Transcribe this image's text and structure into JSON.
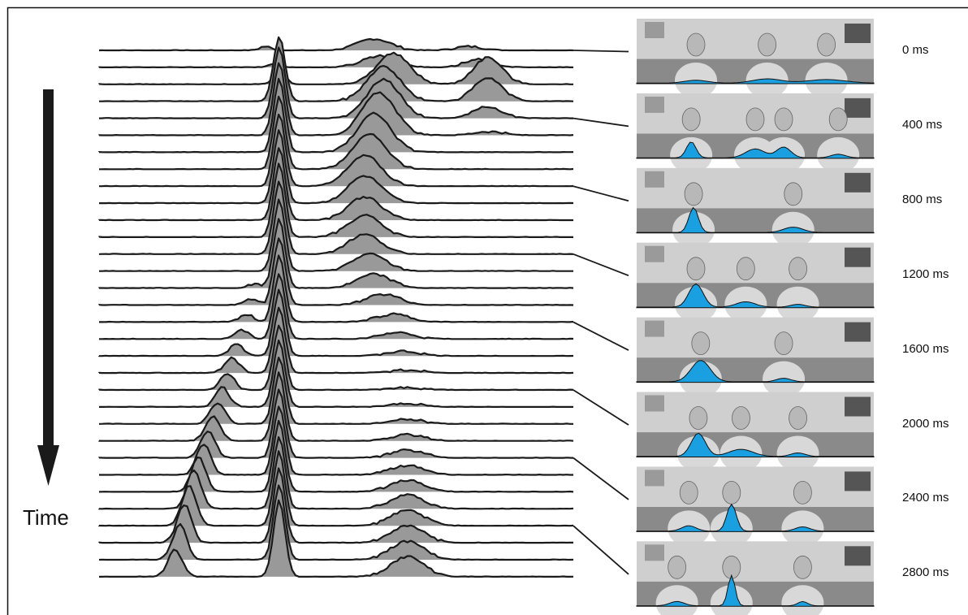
{
  "axis_label": "Time",
  "frames": [
    {
      "time_label": "0 ms",
      "peaks": [
        [
          0.25,
          0.08,
          0.05
        ],
        [
          0.55,
          0.12,
          0.06
        ],
        [
          0.8,
          0.1,
          0.08
        ]
      ]
    },
    {
      "time_label": "400 ms",
      "peaks": [
        [
          0.23,
          0.45,
          0.02
        ],
        [
          0.5,
          0.25,
          0.04
        ],
        [
          0.62,
          0.3,
          0.03
        ],
        [
          0.85,
          0.1,
          0.03
        ]
      ]
    },
    {
      "time_label": "800 ms",
      "peaks": [
        [
          0.24,
          0.7,
          0.02
        ],
        [
          0.66,
          0.15,
          0.04
        ]
      ]
    },
    {
      "time_label": "1200 ms",
      "peaks": [
        [
          0.25,
          0.65,
          0.03
        ],
        [
          0.46,
          0.15,
          0.04
        ],
        [
          0.68,
          0.08,
          0.03
        ]
      ]
    },
    {
      "time_label": "1600 ms",
      "peaks": [
        [
          0.27,
          0.6,
          0.04
        ],
        [
          0.62,
          0.1,
          0.03
        ]
      ]
    },
    {
      "time_label": "2000 ms",
      "peaks": [
        [
          0.26,
          0.65,
          0.03
        ],
        [
          0.44,
          0.2,
          0.05
        ],
        [
          0.68,
          0.1,
          0.03
        ]
      ]
    },
    {
      "time_label": "2400 ms",
      "peaks": [
        [
          0.22,
          0.15,
          0.03
        ],
        [
          0.4,
          0.75,
          0.02
        ],
        [
          0.7,
          0.12,
          0.03
        ]
      ]
    },
    {
      "time_label": "2800 ms",
      "peaks": [
        [
          0.17,
          0.12,
          0.03
        ],
        [
          0.4,
          0.85,
          0.015
        ],
        [
          0.7,
          0.12,
          0.02
        ]
      ]
    }
  ],
  "colors": {
    "profile_fill": "#999999",
    "profile_line": "#1a1a1a",
    "overlay_fill": "#1aa0e0",
    "frame_bg": "#cfcfcf",
    "arrow": "#1a1a1a"
  },
  "chart_data": {
    "type": "area",
    "title": "",
    "xlabel": "",
    "ylabel": "Time",
    "series_count": 32,
    "components": [
      {
        "peak_x": [
          0.48,
          0.48,
          0.48,
          0.48,
          0.48,
          0.48,
          0.47,
          0.46,
          0.44,
          0.42,
          0.4,
          0.38,
          0.36,
          0.34,
          0.33,
          0.32,
          0.31,
          0.3,
          0.29,
          0.28,
          0.27,
          0.26,
          0.25,
          0.24,
          0.23,
          0.22,
          0.21,
          0.2,
          0.19,
          0.18,
          0.17,
          0.16
        ],
        "amplitude": [
          0.0,
          0.0,
          0.0,
          0.0,
          0.0,
          0.0,
          0.0,
          0.0,
          0.0,
          0.0,
          0.0,
          0.0,
          0.0,
          0.0,
          0.05,
          0.08,
          0.1,
          0.12,
          0.15,
          0.2,
          0.22,
          0.25,
          0.28,
          0.32,
          0.35,
          0.4,
          0.45,
          0.5,
          0.52,
          0.5,
          0.45,
          0.35
        ],
        "width": 0.015
      },
      {
        "peak_x": [
          0.35,
          0.37,
          0.38,
          0.38,
          0.38,
          0.38,
          0.38,
          0.38,
          0.38,
          0.38,
          0.38,
          0.38,
          0.38,
          0.38,
          0.38,
          0.38,
          0.38,
          0.38,
          0.38,
          0.38,
          0.38,
          0.38,
          0.38,
          0.38,
          0.38,
          0.38,
          0.38,
          0.38,
          0.38,
          0.38,
          0.38,
          0.38
        ],
        "amplitude": [
          0.05,
          0.05,
          0.2,
          0.85,
          0.92,
          0.95,
          0.95,
          0.95,
          0.95,
          0.95,
          0.95,
          0.95,
          0.95,
          0.92,
          0.9,
          0.88,
          0.86,
          0.85,
          0.85,
          0.85,
          0.85,
          0.86,
          0.87,
          0.88,
          0.89,
          0.9,
          0.92,
          0.94,
          0.96,
          0.97,
          0.98,
          0.99
        ],
        "width": 0.012
      },
      {
        "peak_x": [
          0.58,
          0.59,
          0.62,
          0.6,
          0.6,
          0.59,
          0.58,
          0.57,
          0.56,
          0.56,
          0.56,
          0.56,
          0.56,
          0.57,
          0.58,
          0.6,
          0.62,
          0.63,
          0.64,
          0.65,
          0.65,
          0.65,
          0.65,
          0.65,
          0.65,
          0.65,
          0.65,
          0.65,
          0.65,
          0.65,
          0.65,
          0.65
        ],
        "amplitude": [
          0.15,
          0.15,
          0.4,
          0.45,
          0.5,
          0.55,
          0.5,
          0.45,
          0.4,
          0.35,
          0.3,
          0.28,
          0.25,
          0.22,
          0.18,
          0.14,
          0.1,
          0.08,
          0.06,
          0.04,
          0.03,
          0.04,
          0.06,
          0.08,
          0.1,
          0.12,
          0.15,
          0.18,
          0.2,
          0.22,
          0.24,
          0.26
        ],
        "width": 0.035
      },
      {
        "peak_x": [
          0.78,
          0.8,
          0.82,
          0.82,
          0.82,
          0.82,
          0.82,
          0.82,
          0.82,
          0.82,
          0.82,
          0.82,
          0.82,
          0.82,
          0.82,
          0.82,
          0.82,
          0.82,
          0.82,
          0.82,
          0.82,
          0.82,
          0.82,
          0.82,
          0.82,
          0.82,
          0.82,
          0.82,
          0.82,
          0.82,
          0.82,
          0.82
        ],
        "amplitude": [
          0.05,
          0.1,
          0.35,
          0.3,
          0.15,
          0.05,
          0.0,
          0.0,
          0.0,
          0.0,
          0.0,
          0.0,
          0.0,
          0.0,
          0.0,
          0.0,
          0.0,
          0.0,
          0.0,
          0.0,
          0.0,
          0.0,
          0.0,
          0.0,
          0.0,
          0.0,
          0.0,
          0.0,
          0.0,
          0.0,
          0.0,
          0.0
        ],
        "width": 0.03
      }
    ]
  }
}
